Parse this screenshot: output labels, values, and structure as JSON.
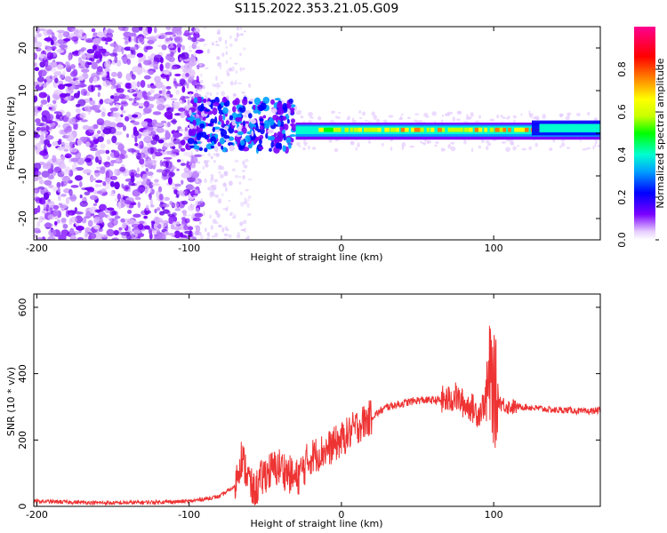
{
  "title": "S115.2022.353.21.05.G09",
  "chart_data": [
    {
      "type": "heatmap",
      "xlabel": "Height of straight line (km)",
      "ylabel": "Frequency (Hz)",
      "xlim": [
        -202,
        170
      ],
      "ylim": [
        -25,
        25
      ],
      "xticks": [
        -200,
        -100,
        0,
        100
      ],
      "yticks": [
        -20,
        -10,
        0,
        10,
        20
      ],
      "colorbar": {
        "label": "Normalized spectral amplitude",
        "range": [
          0,
          1
        ],
        "ticks": [
          0.0,
          0.2,
          0.4,
          0.6,
          0.8
        ],
        "colors": [
          "#ffffff",
          "#e6ccff",
          "#7a00ff",
          "#0000ff",
          "#00a0ff",
          "#00ffd0",
          "#00ff00",
          "#c8ff00",
          "#ffff00",
          "#ff8000",
          "#ff0000",
          "#ff0090"
        ]
      },
      "features": [
        {
          "x_range": [
            -202,
            -100
          ],
          "description": "broadband noise",
          "amplitude": 0.2
        },
        {
          "x_range": [
            -100,
            -30
          ],
          "description": "clusters near 0 to 5 Hz",
          "amplitude": 0.35
        },
        {
          "x_range": [
            -30,
            170
          ],
          "description": "narrow line near 0 to 2 Hz",
          "amplitude": 0.85
        }
      ]
    },
    {
      "type": "line",
      "xlabel": "Height of straight line (km)",
      "ylabel": "SNR (10 * v/v)",
      "xlim": [
        -202,
        170
      ],
      "ylim": [
        0,
        640
      ],
      "xticks": [
        -200,
        -100,
        0,
        100
      ],
      "yticks": [
        0,
        200,
        400,
        600
      ],
      "color": "#ee3333",
      "series": [
        {
          "name": "SNR",
          "x": [
            -200,
            -150,
            -100,
            -80,
            -70,
            -66,
            -62,
            -58,
            -50,
            -40,
            -30,
            -20,
            -10,
            0,
            10,
            20,
            30,
            40,
            50,
            60,
            70,
            75,
            80,
            85,
            90,
            95,
            98,
            100,
            102,
            105,
            110,
            120,
            130,
            140,
            150,
            160,
            170
          ],
          "y": [
            15,
            10,
            15,
            30,
            60,
            150,
            100,
            40,
            100,
            120,
            80,
            150,
            170,
            200,
            240,
            270,
            300,
            310,
            320,
            320,
            320,
            330,
            310,
            300,
            280,
            320,
            400,
            350,
            330,
            310,
            300,
            300,
            295,
            290,
            290,
            285,
            290
          ]
        }
      ]
    }
  ]
}
